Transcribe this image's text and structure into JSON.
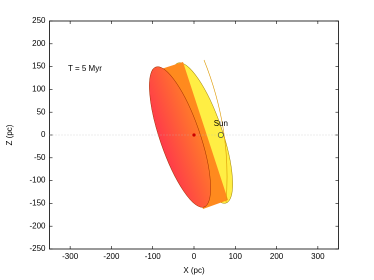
{
  "chart_data": {
    "type": "scatter",
    "annotation": "T = 5 Myr",
    "x_label": "X (pc)",
    "y_label": "Z (pc)",
    "xlim": [
      -350,
      350
    ],
    "ylim": [
      -250,
      250
    ],
    "xticks": [
      -300,
      -200,
      -100,
      0,
      100,
      200,
      300
    ],
    "yticks": [
      -250,
      -200,
      -150,
      -100,
      -50,
      0,
      50,
      100,
      150,
      200,
      250
    ],
    "series": [
      {
        "name": "Sun",
        "color": "#ffff33",
        "x": [
          65
        ],
        "y": [
          0
        ]
      },
      {
        "color": "#cc0000",
        "x": [
          0
        ],
        "y": [
          0
        ]
      }
    ]
  }
}
